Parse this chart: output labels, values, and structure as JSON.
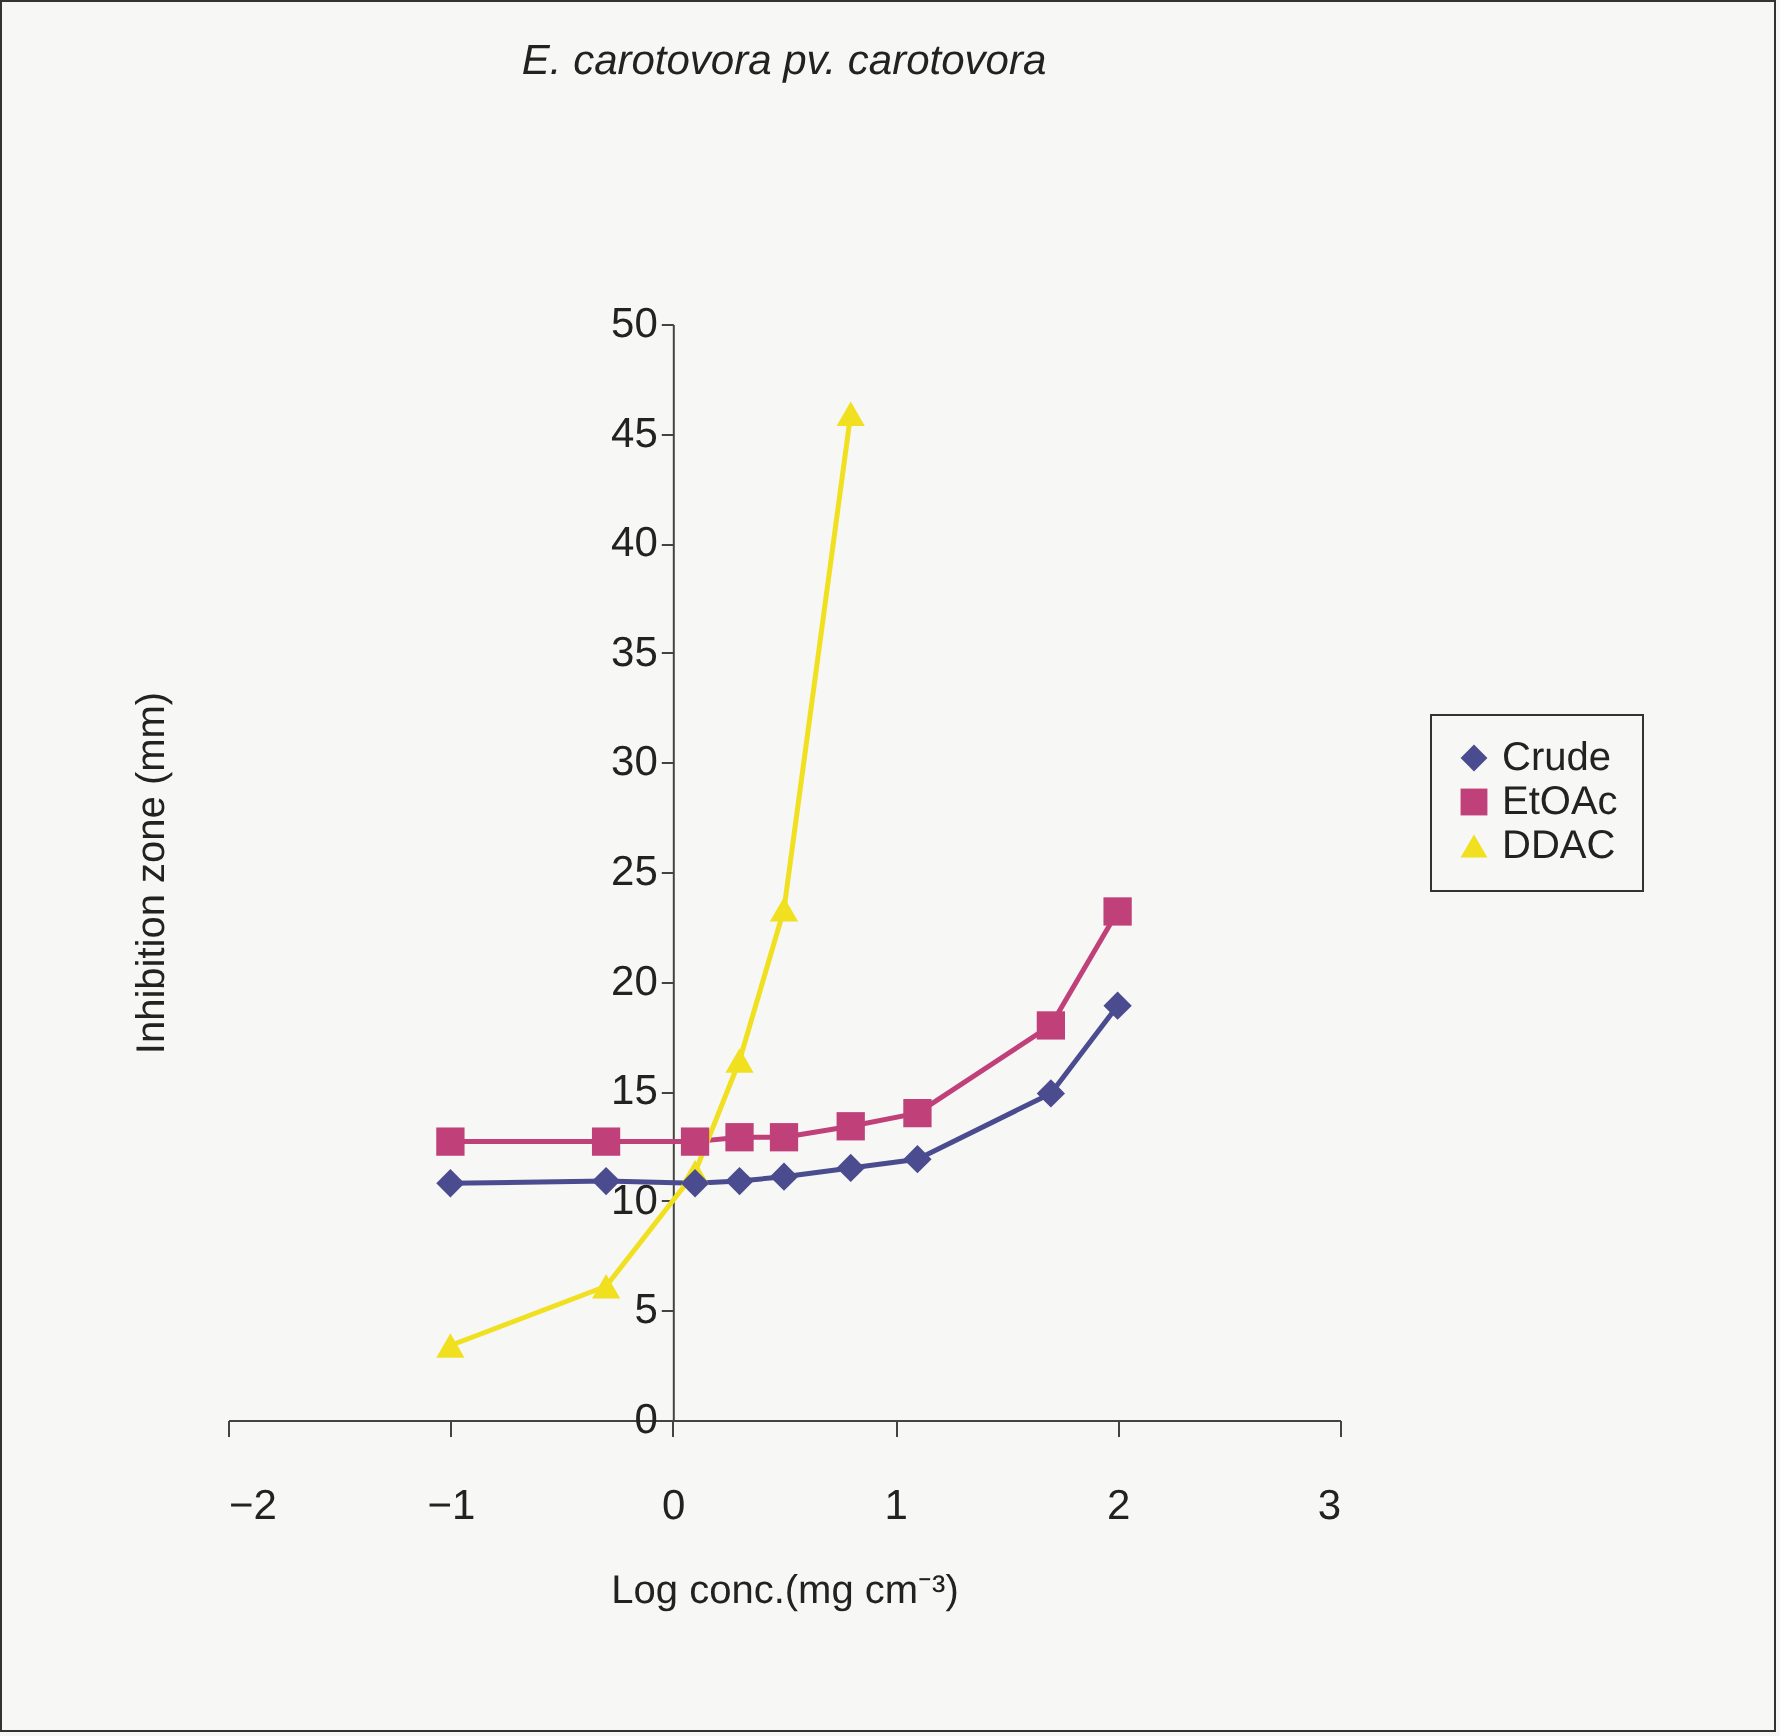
{
  "chart_data": {
    "type": "line",
    "title": "E. carotovora pv. carotovora",
    "xlabel": "Log conc.(mg cm⁻³)",
    "ylabel": "Inhibition zone (mm)",
    "x": [
      -1,
      -0.3,
      0.1,
      0.3,
      0.5,
      0.8,
      1.1,
      1.7,
      2
    ],
    "series": [
      {
        "name": "Crude",
        "color": "#4b4b8f",
        "marker": "diamond",
        "values": [
          10.8,
          10.9,
          10.8,
          10.9,
          11.1,
          11.5,
          11.9,
          14.9,
          18.9
        ]
      },
      {
        "name": "EtOAc",
        "color": "#c0407a",
        "marker": "square",
        "values": [
          12.7,
          12.7,
          12.7,
          12.9,
          12.9,
          13.4,
          14.0,
          18.0,
          23.2
        ]
      },
      {
        "name": "DDAC",
        "color": "#f0e020",
        "marker": "triangle",
        "x": [
          -1,
          -0.3,
          0.1,
          0.3,
          0.5,
          0.8
        ],
        "values": [
          3.4,
          6.1,
          11.3,
          16.4,
          23.3,
          45.9
        ]
      }
    ],
    "xlim": [
      -2,
      3
    ],
    "xticks": [
      -2,
      -1,
      0,
      1,
      2,
      3
    ],
    "ylim": [
      0,
      50
    ],
    "yticks": [
      0,
      5,
      10,
      15,
      20,
      25,
      30,
      35,
      40,
      45,
      50
    ],
    "grid": false,
    "legend": "right",
    "line_style": "solid"
  }
}
